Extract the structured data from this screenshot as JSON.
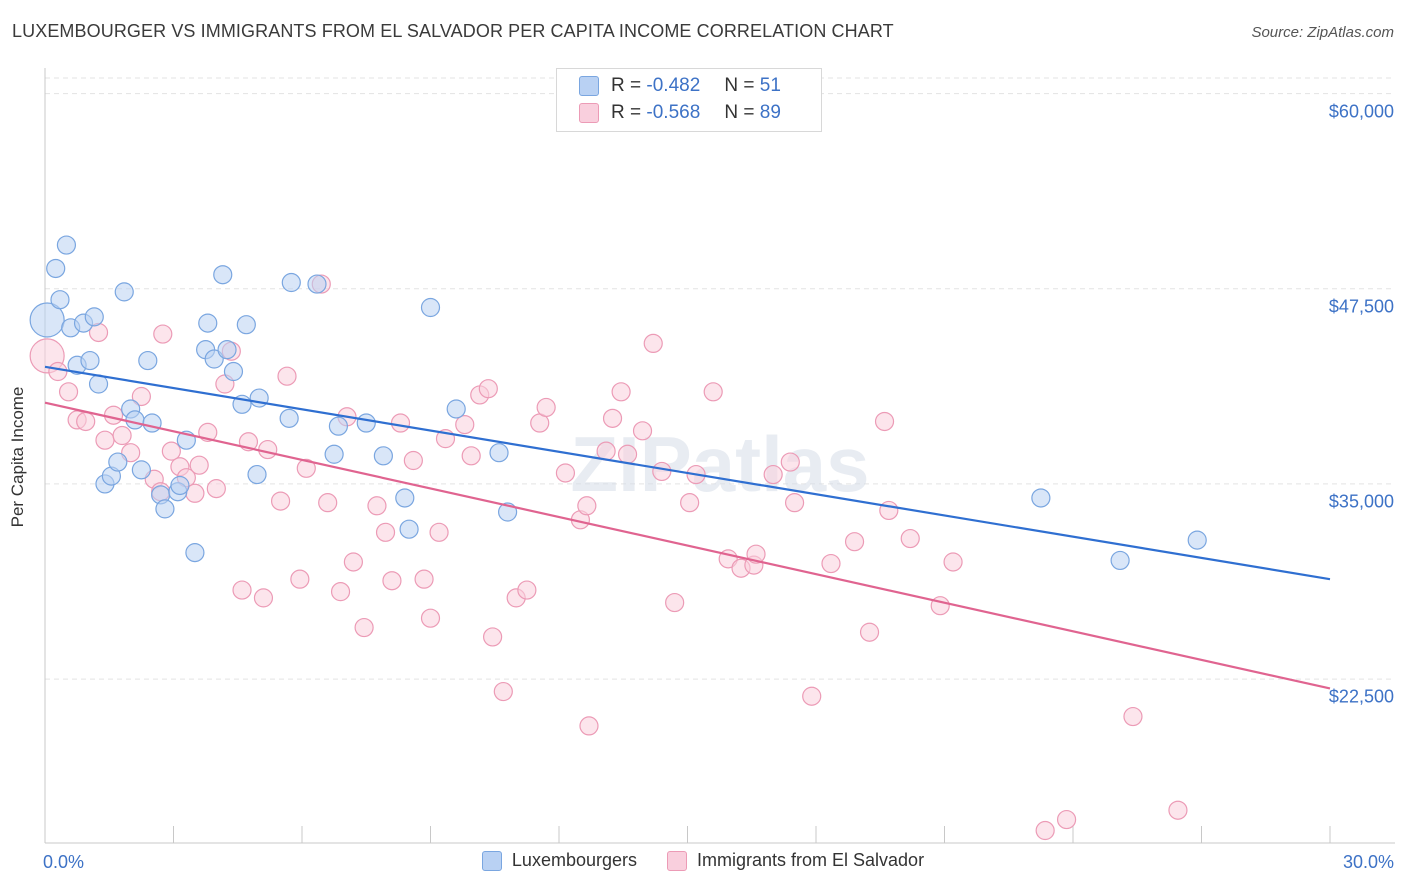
{
  "header": {
    "title": "LUXEMBOURGER VS IMMIGRANTS FROM EL SALVADOR PER CAPITA INCOME CORRELATION CHART",
    "source": "Source: ZipAtlas.com"
  },
  "watermark": "ZIPatlas",
  "legend": {
    "r_label": "R =",
    "n_label": "N =",
    "entries": [
      {
        "r": "-0.482",
        "n": "51"
      },
      {
        "r": "-0.568",
        "n": "89"
      }
    ]
  },
  "colors": {
    "blue_fill": "#b9d1f3",
    "blue_stroke": "#7aa6e0",
    "blue_line": "#2f6fd1",
    "pink_fill": "#f9cfdd",
    "pink_stroke": "#ec9bb6",
    "pink_line": "#e06490",
    "tick_text": "#3d72c6"
  },
  "chart_data": {
    "type": "scatter",
    "title": "LUXEMBOURGER VS IMMIGRANTS FROM EL SALVADOR PER CAPITA INCOME CORRELATION CHART",
    "xlabel": "",
    "ylabel": "Per Capita Income",
    "xlim": [
      0,
      30
    ],
    "ylim": [
      12000,
      61000
    ],
    "x_tick_labels": [
      "0.0%",
      "30.0%"
    ],
    "y_tick_labels": [
      "$60,000",
      "$47,500",
      "$35,000",
      "$22,500"
    ],
    "y_ticks": [
      60000,
      47500,
      35000,
      22500
    ],
    "grid": true,
    "legend_position": "bottom",
    "series": [
      {
        "name": "Luxembourgers",
        "trend": {
          "x": [
            0,
            30
          ],
          "y": [
            42500,
            28900
          ]
        },
        "points": [
          {
            "x": 0.05,
            "y": 45500,
            "big": true
          },
          {
            "x": 0.25,
            "y": 48800
          },
          {
            "x": 0.35,
            "y": 46800
          },
          {
            "x": 0.5,
            "y": 50300
          },
          {
            "x": 0.6,
            "y": 45000
          },
          {
            "x": 0.75,
            "y": 42600
          },
          {
            "x": 0.9,
            "y": 45300
          },
          {
            "x": 1.05,
            "y": 42900
          },
          {
            "x": 1.15,
            "y": 45700
          },
          {
            "x": 1.25,
            "y": 41400
          },
          {
            "x": 1.4,
            "y": 35000
          },
          {
            "x": 1.55,
            "y": 35500
          },
          {
            "x": 1.7,
            "y": 36400
          },
          {
            "x": 1.85,
            "y": 47300
          },
          {
            "x": 2.0,
            "y": 39800
          },
          {
            "x": 2.1,
            "y": 39100
          },
          {
            "x": 2.25,
            "y": 35900
          },
          {
            "x": 2.4,
            "y": 42900
          },
          {
            "x": 2.5,
            "y": 38900
          },
          {
            "x": 2.7,
            "y": 34300
          },
          {
            "x": 2.8,
            "y": 33400
          },
          {
            "x": 3.1,
            "y": 34500
          },
          {
            "x": 3.15,
            "y": 34900
          },
          {
            "x": 3.3,
            "y": 37800
          },
          {
            "x": 3.5,
            "y": 30600
          },
          {
            "x": 3.75,
            "y": 43600
          },
          {
            "x": 3.8,
            "y": 45300
          },
          {
            "x": 3.95,
            "y": 43000
          },
          {
            "x": 4.15,
            "y": 48400
          },
          {
            "x": 4.25,
            "y": 43600
          },
          {
            "x": 4.4,
            "y": 42200
          },
          {
            "x": 4.6,
            "y": 40100
          },
          {
            "x": 4.7,
            "y": 45200
          },
          {
            "x": 4.95,
            "y": 35600
          },
          {
            "x": 5.0,
            "y": 40500
          },
          {
            "x": 5.7,
            "y": 39200
          },
          {
            "x": 5.75,
            "y": 47900
          },
          {
            "x": 6.35,
            "y": 47800
          },
          {
            "x": 6.75,
            "y": 36900
          },
          {
            "x": 6.85,
            "y": 38700
          },
          {
            "x": 7.5,
            "y": 38900
          },
          {
            "x": 7.9,
            "y": 36800
          },
          {
            "x": 8.4,
            "y": 34100
          },
          {
            "x": 8.5,
            "y": 32100
          },
          {
            "x": 9.0,
            "y": 46300
          },
          {
            "x": 9.6,
            "y": 39800
          },
          {
            "x": 10.6,
            "y": 37000
          },
          {
            "x": 10.8,
            "y": 33200
          },
          {
            "x": 23.25,
            "y": 34100
          },
          {
            "x": 25.1,
            "y": 30100
          },
          {
            "x": 26.9,
            "y": 31400
          }
        ]
      },
      {
        "name": "Immigrants from El Salvador",
        "trend": {
          "x": [
            0,
            30
          ],
          "y": [
            40200,
            21900
          ]
        },
        "points": [
          {
            "x": 0.05,
            "y": 43200,
            "big": true
          },
          {
            "x": 0.3,
            "y": 42200
          },
          {
            "x": 0.55,
            "y": 40900
          },
          {
            "x": 0.75,
            "y": 39100
          },
          {
            "x": 0.95,
            "y": 39000
          },
          {
            "x": 1.25,
            "y": 44700
          },
          {
            "x": 1.4,
            "y": 37800
          },
          {
            "x": 1.6,
            "y": 39400
          },
          {
            "x": 1.8,
            "y": 38100
          },
          {
            "x": 2.0,
            "y": 37000
          },
          {
            "x": 2.25,
            "y": 40600
          },
          {
            "x": 2.55,
            "y": 35300
          },
          {
            "x": 2.7,
            "y": 34500
          },
          {
            "x": 2.75,
            "y": 44600
          },
          {
            "x": 2.95,
            "y": 37100
          },
          {
            "x": 3.15,
            "y": 36100
          },
          {
            "x": 3.3,
            "y": 35400
          },
          {
            "x": 3.5,
            "y": 34400
          },
          {
            "x": 3.6,
            "y": 36200
          },
          {
            "x": 3.8,
            "y": 38300
          },
          {
            "x": 4.0,
            "y": 34700
          },
          {
            "x": 4.2,
            "y": 41400
          },
          {
            "x": 4.35,
            "y": 43500
          },
          {
            "x": 4.6,
            "y": 28200
          },
          {
            "x": 4.75,
            "y": 37700
          },
          {
            "x": 5.1,
            "y": 27700
          },
          {
            "x": 5.2,
            "y": 37200
          },
          {
            "x": 5.5,
            "y": 33900
          },
          {
            "x": 5.65,
            "y": 41900
          },
          {
            "x": 5.95,
            "y": 28900
          },
          {
            "x": 6.1,
            "y": 36000
          },
          {
            "x": 6.45,
            "y": 47800
          },
          {
            "x": 6.6,
            "y": 33800
          },
          {
            "x": 6.9,
            "y": 28100
          },
          {
            "x": 7.05,
            "y": 39300
          },
          {
            "x": 7.2,
            "y": 30000
          },
          {
            "x": 7.45,
            "y": 25800
          },
          {
            "x": 7.75,
            "y": 33600
          },
          {
            "x": 7.95,
            "y": 31900
          },
          {
            "x": 8.1,
            "y": 28800
          },
          {
            "x": 8.3,
            "y": 38900
          },
          {
            "x": 8.6,
            "y": 36500
          },
          {
            "x": 8.85,
            "y": 28900
          },
          {
            "x": 9.0,
            "y": 26400
          },
          {
            "x": 9.2,
            "y": 31900
          },
          {
            "x": 9.35,
            "y": 37900
          },
          {
            "x": 9.8,
            "y": 38800
          },
          {
            "x": 9.95,
            "y": 36800
          },
          {
            "x": 10.15,
            "y": 40700
          },
          {
            "x": 10.35,
            "y": 41100
          },
          {
            "x": 10.45,
            "y": 25200
          },
          {
            "x": 10.7,
            "y": 21700
          },
          {
            "x": 11.0,
            "y": 27700
          },
          {
            "x": 11.25,
            "y": 28200
          },
          {
            "x": 11.55,
            "y": 38900
          },
          {
            "x": 11.7,
            "y": 39900
          },
          {
            "x": 12.15,
            "y": 35700
          },
          {
            "x": 12.5,
            "y": 32700
          },
          {
            "x": 12.65,
            "y": 33600
          },
          {
            "x": 12.7,
            "y": 19500
          },
          {
            "x": 13.1,
            "y": 37100
          },
          {
            "x": 13.25,
            "y": 39200
          },
          {
            "x": 13.45,
            "y": 40900
          },
          {
            "x": 13.6,
            "y": 36900
          },
          {
            "x": 13.95,
            "y": 38400
          },
          {
            "x": 14.2,
            "y": 44000
          },
          {
            "x": 14.4,
            "y": 35800
          },
          {
            "x": 14.7,
            "y": 27400
          },
          {
            "x": 15.05,
            "y": 33800
          },
          {
            "x": 15.2,
            "y": 35600
          },
          {
            "x": 15.6,
            "y": 40900
          },
          {
            "x": 15.95,
            "y": 30200
          },
          {
            "x": 16.25,
            "y": 29600
          },
          {
            "x": 16.55,
            "y": 29800
          },
          {
            "x": 16.6,
            "y": 30500
          },
          {
            "x": 17.0,
            "y": 35600
          },
          {
            "x": 17.4,
            "y": 36400
          },
          {
            "x": 17.5,
            "y": 33800
          },
          {
            "x": 17.9,
            "y": 21400
          },
          {
            "x": 18.35,
            "y": 29900
          },
          {
            "x": 18.9,
            "y": 31300
          },
          {
            "x": 19.25,
            "y": 25500
          },
          {
            "x": 19.6,
            "y": 39000
          },
          {
            "x": 19.7,
            "y": 33300
          },
          {
            "x": 20.2,
            "y": 31500
          },
          {
            "x": 20.9,
            "y": 27200
          },
          {
            "x": 21.2,
            "y": 30000
          },
          {
            "x": 23.35,
            "y": 12800
          },
          {
            "x": 23.85,
            "y": 13500
          },
          {
            "x": 25.4,
            "y": 20100
          },
          {
            "x": 26.45,
            "y": 14100
          }
        ]
      }
    ]
  }
}
